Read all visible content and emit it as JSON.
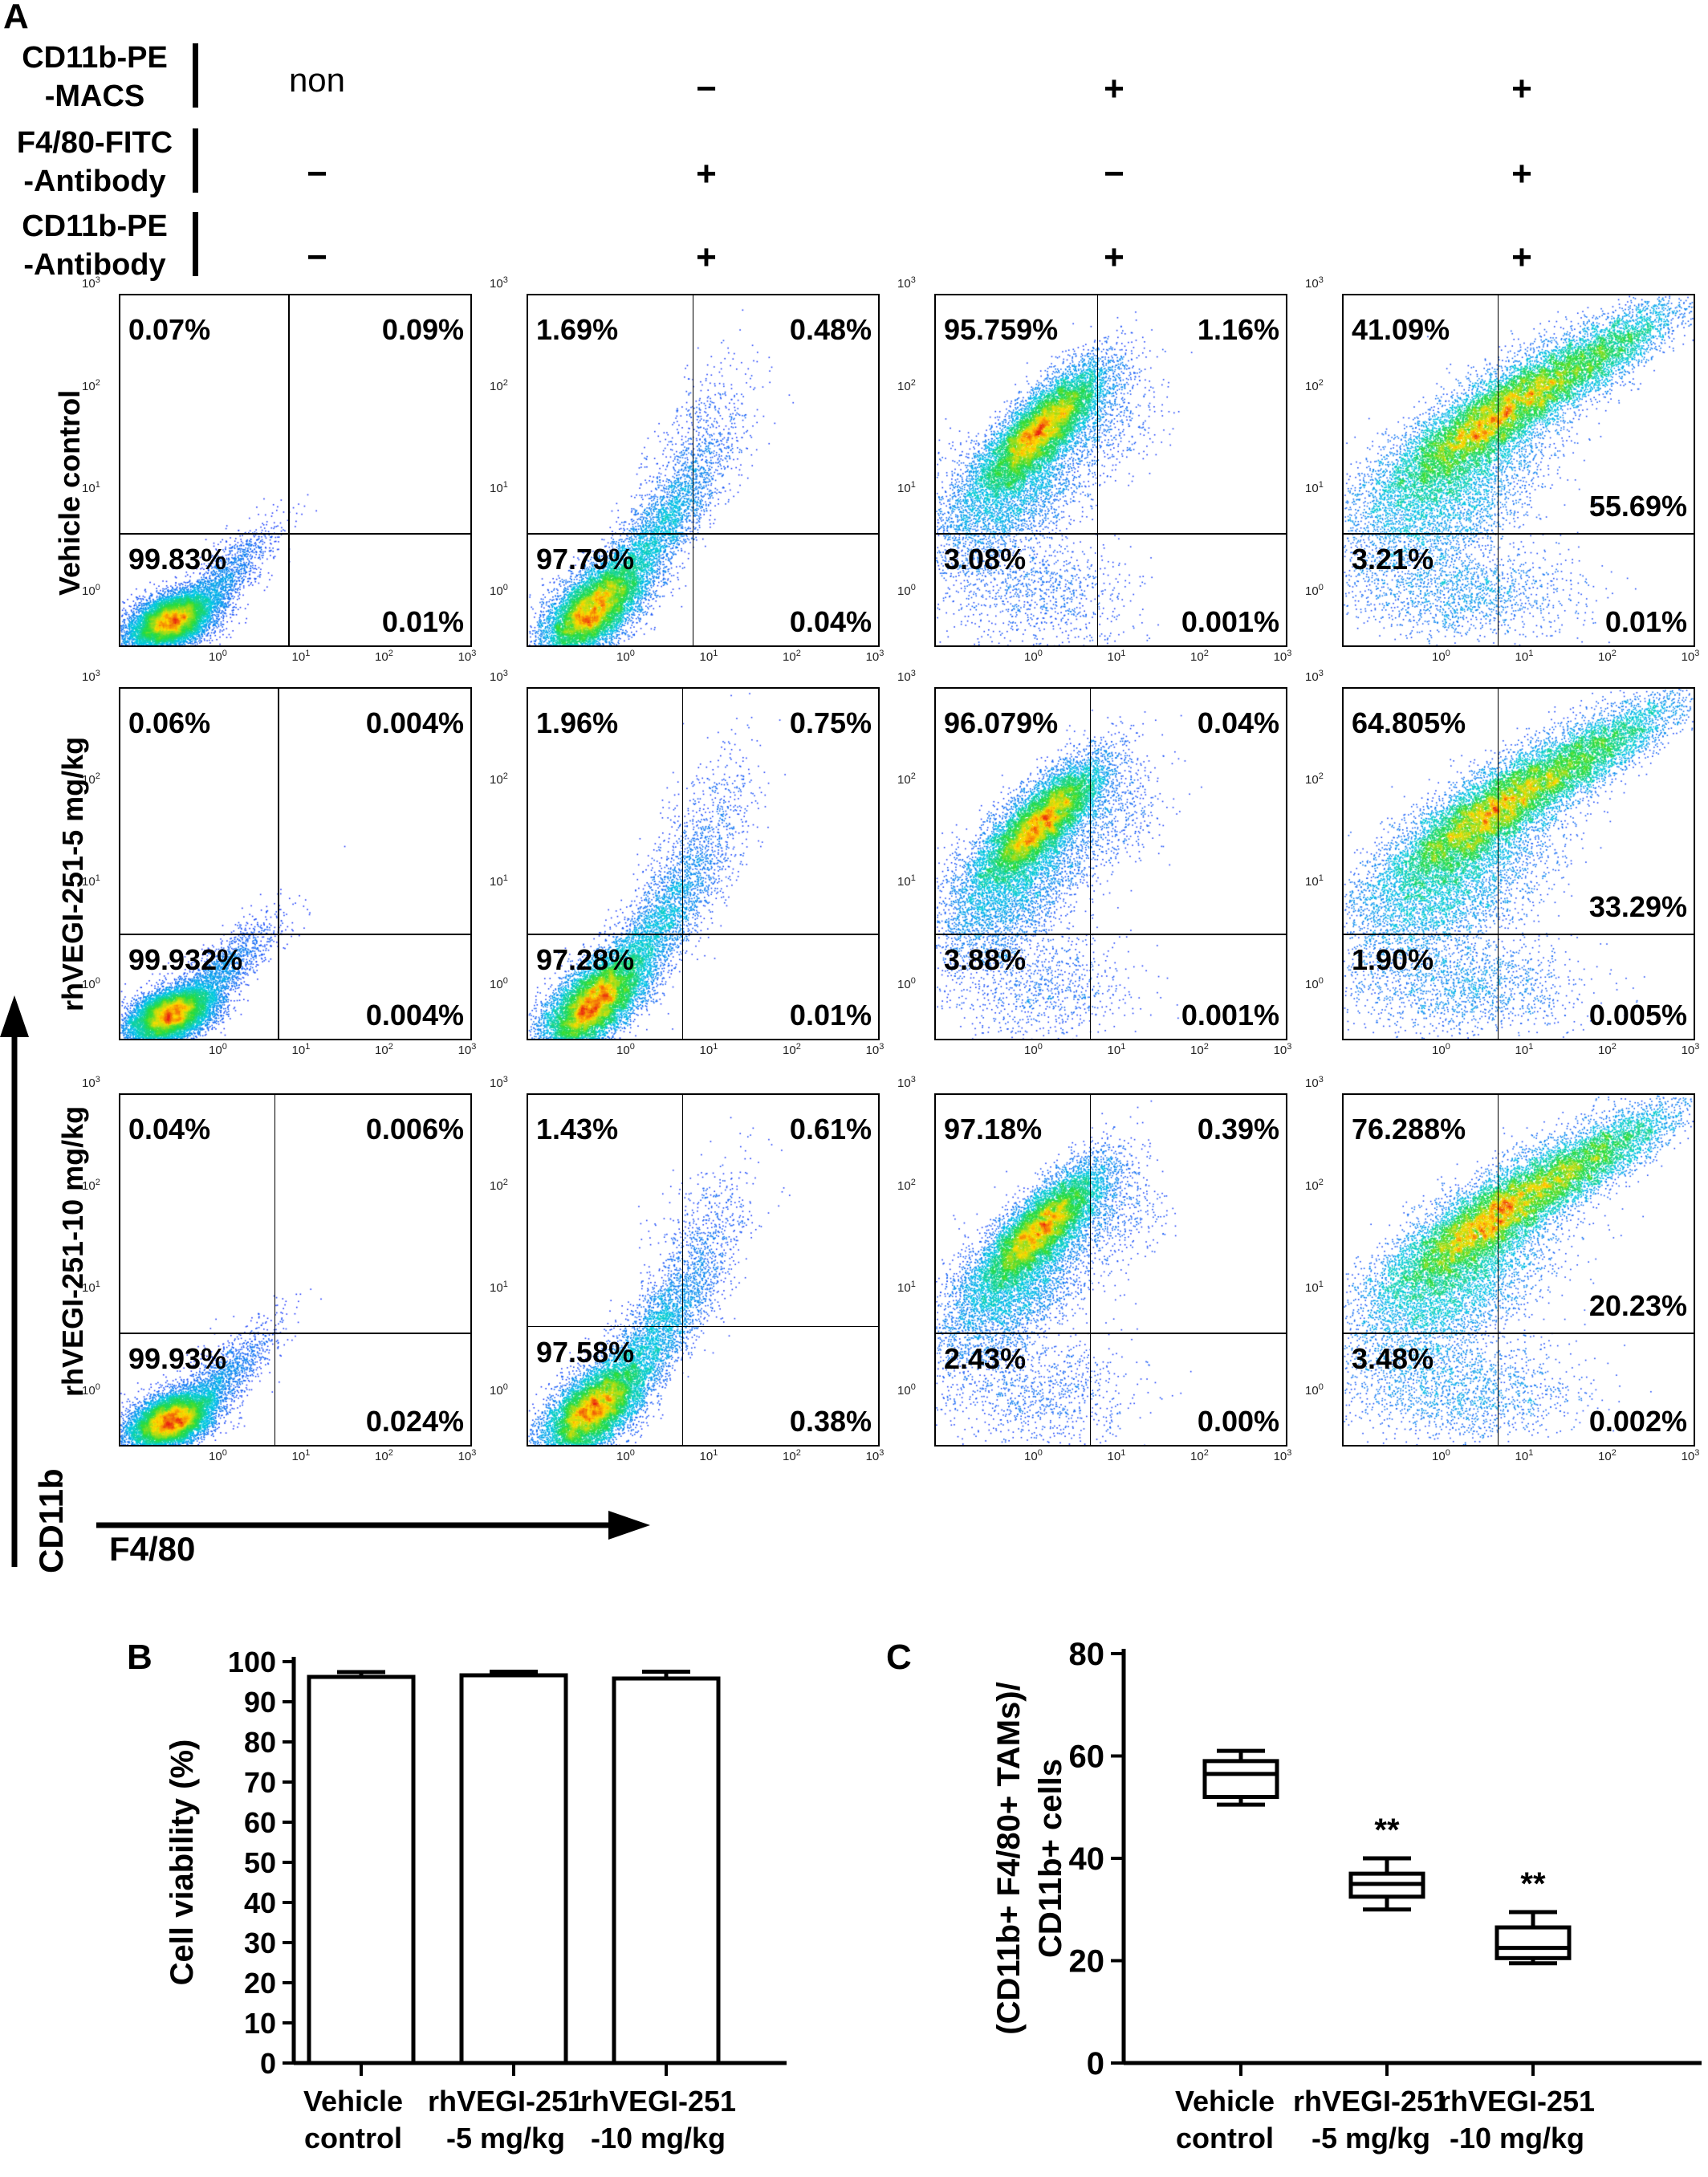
{
  "panel_a": {
    "label": "A",
    "conditions": [
      {
        "name": "CD11b-PE\n-MACS",
        "values": [
          "non",
          "−",
          "+",
          "+"
        ]
      },
      {
        "name": "F4/80-FITC\n-Antibody",
        "values": [
          "−",
          "+",
          "−",
          "+"
        ]
      },
      {
        "name": "CD11b-PE\n-Antibody",
        "values": [
          "−",
          "+",
          "+",
          "+"
        ]
      }
    ],
    "row_labels": [
      "Vehicle control",
      "rhVEGI-251-5 mg/kg",
      "rhVEGI-251-10 mg/kg"
    ],
    "x_axis_label": "F4/80",
    "y_axis_label": "CD11b",
    "tick_labels": [
      "10",
      "10",
      "10",
      "10"
    ],
    "tick_exponents": [
      "0",
      "1",
      "2",
      "3"
    ],
    "plots": [
      [
        {
          "ul": "0.07%",
          "ur": "0.09%",
          "ll": "99.83%",
          "lr": "0.01%",
          "mid": ""
        },
        {
          "ul": "1.69%",
          "ur": "0.48%",
          "ll": "97.79%",
          "lr": "0.04%",
          "mid": ""
        },
        {
          "ul": "95.759%",
          "ur": "1.16%",
          "ll": "3.08%",
          "lr": "0.001%",
          "mid": ""
        },
        {
          "ul": "41.09%",
          "ur": "",
          "ll": "3.21%",
          "lr": "0.01%",
          "mid": "55.69%"
        }
      ],
      [
        {
          "ul": "0.06%",
          "ur": "0.004%",
          "ll": "99.932%",
          "lr": "0.004%",
          "mid": ""
        },
        {
          "ul": "1.96%",
          "ur": "0.75%",
          "ll": "97.28%",
          "lr": "0.01%",
          "mid": ""
        },
        {
          "ul": "96.079%",
          "ur": "0.04%",
          "ll": "3.88%",
          "lr": "0.001%",
          "mid": ""
        },
        {
          "ul": "64.805%",
          "ur": "",
          "ll": "1.90%",
          "lr": "0.005%",
          "mid": "33.29%"
        }
      ],
      [
        {
          "ul": "0.04%",
          "ur": "0.006%",
          "ll": "99.93%",
          "lr": "0.024%",
          "mid": ""
        },
        {
          "ul": "1.43%",
          "ur": "0.61%",
          "ll": "97.58%",
          "lr": "0.38%",
          "mid": ""
        },
        {
          "ul": "97.18%",
          "ur": "0.39%",
          "ll": "2.43%",
          "lr": "0.00%",
          "mid": ""
        },
        {
          "ul": "76.288%",
          "ur": "",
          "ll": "3.48%",
          "lr": "0.002%",
          "mid": "20.23%"
        }
      ]
    ],
    "colors": {
      "low": "#1a1aff",
      "mid": "#00c8a0",
      "high": "#e81010"
    }
  },
  "chart_data": [
    {
      "type": "bar",
      "panel": "B",
      "ylabel": "Cell viability (%)",
      "categories": [
        "Vehicle\ncontrol",
        "rhVEGI-251\n-5 mg/kg",
        "rhVEGI-251\n-10 mg/kg"
      ],
      "values": [
        96.2,
        96.6,
        95.8
      ],
      "errors": [
        1.2,
        0.9,
        1.7
      ],
      "ylim": [
        0,
        100
      ],
      "yticks": [
        "0",
        "10",
        "20",
        "30",
        "40",
        "50",
        "60",
        "70",
        "80",
        "90",
        "100"
      ]
    },
    {
      "type": "box",
      "panel": "C",
      "ylabel_line1": "(CD11b+ F4/80+ TAMs)/",
      "ylabel_line2": "CD11b+ cells",
      "categories": [
        "Vehicle\ncontrol",
        "rhVEGI-251\n-5 mg/kg",
        "rhVEGI-251\n-10 mg/kg"
      ],
      "boxes": [
        {
          "min": 50.5,
          "q1": 52,
          "median": 56.5,
          "q3": 59,
          "max": 61,
          "mark": ""
        },
        {
          "min": 30,
          "q1": 32.5,
          "median": 35,
          "q3": 37,
          "max": 40,
          "mark": "**"
        },
        {
          "min": 19.5,
          "q1": 20.5,
          "median": 22.5,
          "q3": 26.5,
          "max": 29.5,
          "mark": "**"
        }
      ],
      "ylim": [
        0,
        80
      ],
      "yticks": [
        "0",
        "20",
        "40",
        "60",
        "80"
      ]
    }
  ]
}
